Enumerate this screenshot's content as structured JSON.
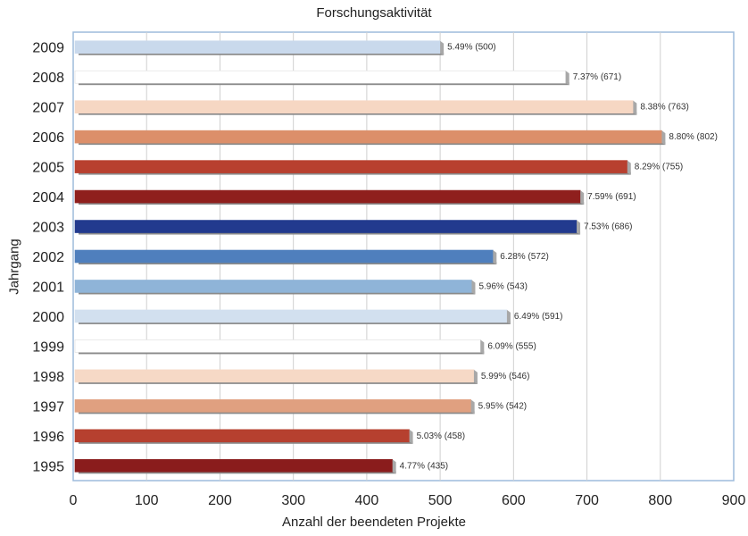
{
  "chart_data": {
    "type": "bar",
    "orientation": "horizontal",
    "title": "Forschungsaktivität",
    "xlabel": "Anzahl der beendeten Projekte",
    "ylabel": "Jahrgang",
    "xlim": [
      0,
      900
    ],
    "xticks": [
      "0",
      "100",
      "200",
      "300",
      "400",
      "500",
      "600",
      "700",
      "800",
      "900"
    ],
    "grid": true,
    "categories": [
      "2009",
      "2008",
      "2007",
      "2006",
      "2005",
      "2004",
      "2003",
      "2002",
      "2001",
      "2000",
      "1999",
      "1998",
      "1997",
      "1996",
      "1995"
    ],
    "values": [
      500,
      671,
      763,
      802,
      755,
      691,
      686,
      572,
      543,
      591,
      555,
      546,
      542,
      458,
      435
    ],
    "labels": [
      "5.49% (500)",
      "7.37% (671)",
      "8.38% (763)",
      "8.80% (802)",
      "8.29% (755)",
      "7.59% (691)",
      "7.53% (686)",
      "6.28% (572)",
      "5.96% (543)",
      "6.49% (591)",
      "6.09% (555)",
      "5.99% (546)",
      "5.95% (542)",
      "5.03% (458)",
      "4.77% (435)"
    ],
    "colors": [
      "#c9d9ec",
      "#ffffff",
      "#f6d7c3",
      "#dc8f6a",
      "#b8402f",
      "#8f1f1d",
      "#223a8e",
      "#4f7fbd",
      "#8fb4d8",
      "#d2e0ef",
      "#ffffff",
      "#f6d9c6",
      "#e0a080",
      "#b6402f",
      "#8a1c1c"
    ]
  }
}
